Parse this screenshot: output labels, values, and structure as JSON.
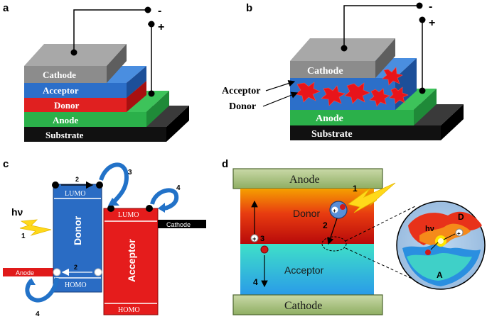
{
  "panels": {
    "a": {
      "label": "a",
      "layers": [
        "Cathode",
        "Acceptor",
        "Donor",
        "Anode",
        "Substrate"
      ],
      "terminal_minus": "-",
      "terminal_plus": "+"
    },
    "b": {
      "label": "b",
      "layers": [
        "Cathode",
        "Anode",
        "Substrate"
      ],
      "annotations": [
        "Acceptor",
        "Donor"
      ],
      "terminal_minus": "-",
      "terminal_plus": "+"
    },
    "c": {
      "label": "c",
      "donor_label": "Donor",
      "acceptor_label": "Acceptor",
      "donor_lumo": "LUMO",
      "donor_homo": "HOMO",
      "acceptor_lumo": "LUMO",
      "acceptor_homo": "HOMO",
      "photon": "hν",
      "anode": "Anode",
      "cathode": "Cathode",
      "steps": [
        "1",
        "2",
        "3",
        "4",
        "2",
        "4"
      ]
    },
    "d": {
      "label": "d",
      "anode": "Anode",
      "cathode": "Cathode",
      "donor": "Donor",
      "acceptor": "Acceptor",
      "steps": [
        "1",
        "2",
        "3",
        "4"
      ],
      "inset_photon": "hν",
      "inset_donor": "D",
      "inset_acceptor": "A"
    }
  },
  "colors": {
    "cathode": "#8c8c8c",
    "acceptor_blue": "#2c6fc9",
    "donor_red": "#e02020",
    "anode_green": "#2bb04a",
    "substrate": "#111111",
    "electrode_green": "#a9c27a"
  }
}
